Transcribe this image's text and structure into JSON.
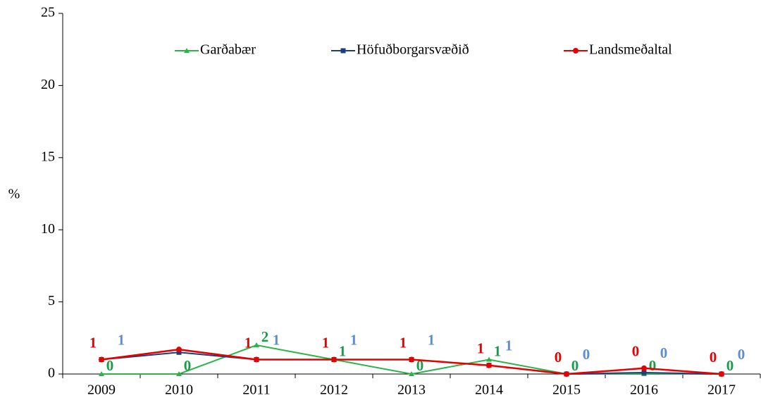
{
  "chart_data": {
    "type": "line",
    "y_label": "%",
    "categories": [
      "2009",
      "2010",
      "2011",
      "2012",
      "2013",
      "2014",
      "2015",
      "2016",
      "2017"
    ],
    "series": [
      {
        "name": "Garðabær",
        "color": "#2db34a",
        "label_color": "#1a9c4a",
        "marker": "triangle",
        "values": [
          0,
          0,
          2,
          1,
          0,
          1,
          0,
          0,
          0
        ],
        "value_labels": [
          "0",
          "0",
          "2",
          "1",
          "0",
          "1",
          "0",
          "0",
          "0"
        ]
      },
      {
        "name": "Höfuðborgarsvæðið",
        "color": "#1f3d7a",
        "label_color": "#5b8fd0",
        "marker": "square",
        "values": [
          1.0,
          1.5,
          1.0,
          1.0,
          1.0,
          0.6,
          0.0,
          0.1,
          0.0
        ],
        "value_labels": [
          "1",
          null,
          "1",
          "1",
          "1",
          "1",
          "0",
          "0",
          "0"
        ]
      },
      {
        "name": "Landsmeðaltal",
        "color": "#e60000",
        "label_color": "#e60000",
        "marker": "circle",
        "values": [
          1.0,
          1.7,
          1.0,
          1.0,
          1.0,
          0.6,
          0.0,
          0.4,
          0.0
        ],
        "value_labels": [
          "1",
          null,
          "1",
          "1",
          "1",
          "1",
          "0",
          "0",
          "0"
        ]
      }
    ],
    "ylim": [
      0,
      25
    ],
    "yticks": [
      0,
      5,
      10,
      15,
      20,
      25
    ],
    "grid": false,
    "legend": "top"
  }
}
